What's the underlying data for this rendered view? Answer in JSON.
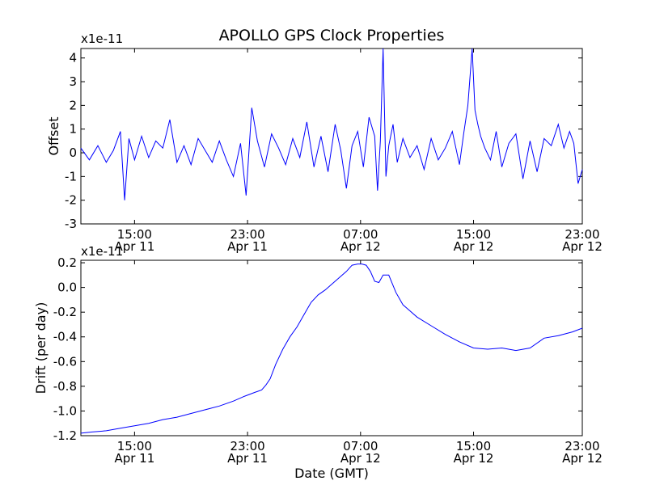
{
  "figure": {
    "title": "APOLLO GPS Clock Properties"
  },
  "chart_data": [
    {
      "type": "line",
      "name": "offset-panel",
      "exponent_label": "x1e-11",
      "ylabel": "Offset",
      "xlabel": "",
      "ylim": [
        -3,
        4.4
      ],
      "yticks": [
        -3,
        -2,
        -1,
        0,
        1,
        2,
        3,
        4
      ],
      "ytick_labels": [
        "-3",
        "-2",
        "-1",
        "0",
        "1",
        "2",
        "3",
        "4"
      ],
      "xlim_hours": [
        11.2,
        46.7
      ],
      "xticks": [
        {
          "hour": 15,
          "time": "15:00",
          "date": "Apr 11"
        },
        {
          "hour": 23,
          "time": "23:00",
          "date": "Apr 11"
        },
        {
          "hour": 31,
          "time": "07:00",
          "date": "Apr 12"
        },
        {
          "hour": 39,
          "time": "15:00",
          "date": "Apr 12"
        },
        {
          "hour": 47,
          "time": "23:00",
          "date": "Apr 12"
        }
      ],
      "series": [
        {
          "color": "#0000ff",
          "x_hours": [
            11.2,
            11.8,
            12.4,
            13.0,
            13.5,
            14.0,
            14.3,
            14.6,
            15.0,
            15.5,
            16.0,
            16.5,
            17.0,
            17.5,
            18.0,
            18.5,
            19.0,
            19.5,
            20.0,
            20.5,
            21.0,
            21.5,
            22.0,
            22.5,
            22.9,
            23.3,
            23.7,
            24.2,
            24.7,
            25.2,
            25.7,
            26.2,
            26.7,
            27.2,
            27.7,
            28.2,
            28.7,
            29.2,
            29.6,
            30.0,
            30.4,
            30.8,
            31.2,
            31.6,
            32.0,
            32.2,
            32.4,
            32.6,
            32.8,
            33.0,
            33.3,
            33.6,
            34.0,
            34.5,
            35.0,
            35.5,
            36.0,
            36.5,
            37.0,
            37.5,
            38.0,
            38.3,
            38.6,
            38.9,
            39.1,
            39.3,
            39.5,
            39.8,
            40.2,
            40.6,
            41.0,
            41.5,
            42.0,
            42.5,
            43.0,
            43.5,
            44.0,
            44.5,
            45.0,
            45.4,
            45.8,
            46.1,
            46.4,
            46.7
          ],
          "values": [
            0.2,
            -0.3,
            0.3,
            -0.4,
            0.1,
            0.9,
            -2.0,
            0.6,
            -0.3,
            0.7,
            -0.2,
            0.5,
            0.2,
            1.4,
            -0.4,
            0.3,
            -0.5,
            0.6,
            0.1,
            -0.4,
            0.5,
            -0.3,
            -1.0,
            0.4,
            -1.8,
            1.9,
            0.5,
            -0.6,
            0.8,
            0.2,
            -0.5,
            0.6,
            -0.2,
            1.3,
            -0.6,
            0.7,
            -0.8,
            1.2,
            0.1,
            -1.5,
            0.3,
            0.9,
            -0.6,
            1.5,
            0.7,
            -1.6,
            0.5,
            4.4,
            -1.0,
            0.3,
            1.2,
            -0.4,
            0.6,
            -0.2,
            0.3,
            -0.7,
            0.6,
            -0.3,
            0.2,
            0.9,
            -0.5,
            0.8,
            2.0,
            4.4,
            1.8,
            1.2,
            0.7,
            0.2,
            -0.3,
            0.9,
            -0.6,
            0.4,
            0.8,
            -1.1,
            0.5,
            -0.8,
            0.6,
            0.3,
            1.2,
            0.2,
            0.9,
            0.4,
            -1.3,
            -0.7
          ]
        }
      ]
    },
    {
      "type": "line",
      "name": "drift-panel",
      "exponent_label": "x1e-11",
      "ylabel": "Drift (per day)",
      "xlabel": "Date (GMT)",
      "ylim": [
        -1.2,
        0.22
      ],
      "yticks": [
        -1.2,
        -1.0,
        -0.8,
        -0.6,
        -0.4,
        -0.2,
        0.0,
        0.2
      ],
      "ytick_labels": [
        "-1.2",
        "-1.0",
        "-0.8",
        "-0.6",
        "-0.4",
        "-0.2",
        "0.0",
        "0.2"
      ],
      "xlim_hours": [
        11.2,
        46.7
      ],
      "xticks": [
        {
          "hour": 15,
          "time": "15:00",
          "date": "Apr 11"
        },
        {
          "hour": 23,
          "time": "23:00",
          "date": "Apr 11"
        },
        {
          "hour": 31,
          "time": "07:00",
          "date": "Apr 12"
        },
        {
          "hour": 39,
          "time": "15:00",
          "date": "Apr 12"
        },
        {
          "hour": 47,
          "time": "23:00",
          "date": "Apr 12"
        }
      ],
      "series": [
        {
          "color": "#0000ff",
          "x_hours": [
            11.2,
            12.0,
            13.0,
            14.0,
            15.0,
            16.0,
            17.0,
            18.0,
            19.0,
            20.0,
            21.0,
            22.0,
            22.8,
            23.5,
            24.0,
            24.3,
            24.6,
            25.0,
            25.5,
            26.0,
            26.5,
            27.0,
            27.5,
            28.0,
            28.5,
            29.0,
            29.5,
            30.0,
            30.4,
            30.8,
            31.1,
            31.4,
            31.7,
            32.0,
            32.3,
            32.6,
            33.0,
            33.5,
            34.0,
            35.0,
            36.0,
            37.0,
            38.0,
            39.0,
            40.0,
            41.0,
            42.0,
            43.0,
            44.0,
            45.0,
            46.0,
            46.7
          ],
          "values": [
            -1.18,
            -1.17,
            -1.16,
            -1.14,
            -1.12,
            -1.1,
            -1.07,
            -1.05,
            -1.02,
            -0.99,
            -0.96,
            -0.92,
            -0.88,
            -0.85,
            -0.83,
            -0.79,
            -0.74,
            -0.62,
            -0.5,
            -0.4,
            -0.32,
            -0.22,
            -0.12,
            -0.06,
            -0.02,
            0.03,
            0.08,
            0.13,
            0.18,
            0.19,
            0.19,
            0.18,
            0.13,
            0.05,
            0.04,
            0.1,
            0.1,
            -0.04,
            -0.14,
            -0.24,
            -0.31,
            -0.38,
            -0.44,
            -0.49,
            -0.5,
            -0.49,
            -0.51,
            -0.49,
            -0.41,
            -0.39,
            -0.36,
            -0.33
          ]
        }
      ]
    }
  ]
}
